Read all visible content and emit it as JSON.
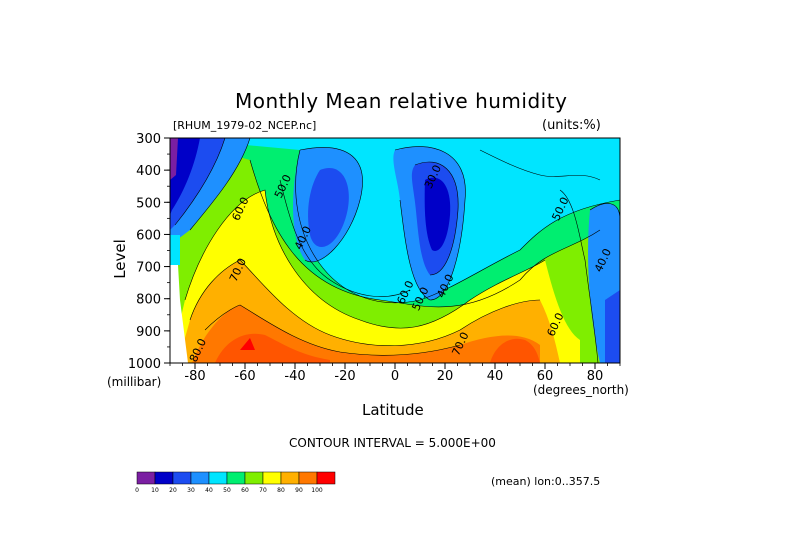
{
  "chart_data": {
    "type": "heatmap",
    "subtype": "filled-contour",
    "title": "Monthly Mean relative humidity",
    "dataset_label": "[RHUM_1979-02_NCEP.nc]",
    "units_label": "(units:%)",
    "xlabel": "Latitude",
    "x_unit": "(degrees_north)",
    "ylabel": "Level",
    "y_unit": "(millibar)",
    "xlim": [
      -90,
      90
    ],
    "ylim": [
      300,
      1000
    ],
    "y_axis_inverted": true,
    "x_ticks": [
      "-80",
      "-60",
      "-40",
      "-20",
      "0",
      "20",
      "40",
      "60",
      "80"
    ],
    "y_ticks": [
      "300",
      "400",
      "500",
      "600",
      "700",
      "800",
      "900",
      "1000"
    ],
    "contour_interval_text": "CONTOUR INTERVAL = 5.000E+00",
    "mean_text": "(mean) lon:0..357.5",
    "contour_labels": [
      {
        "text": "30.0",
        "x": 15,
        "y": 420
      },
      {
        "text": "40.0",
        "x": -37,
        "y": 610
      },
      {
        "text": "40.0",
        "x": 20,
        "y": 760
      },
      {
        "text": "40.0",
        "x": 83,
        "y": 680
      },
      {
        "text": "50.0",
        "x": -45,
        "y": 450
      },
      {
        "text": "50.0",
        "x": 10,
        "y": 800
      },
      {
        "text": "50.0",
        "x": 66,
        "y": 520
      },
      {
        "text": "60.0",
        "x": -62,
        "y": 520
      },
      {
        "text": "60.0",
        "x": 4,
        "y": 780
      },
      {
        "text": "60.0",
        "x": 64,
        "y": 880
      },
      {
        "text": "70.0",
        "x": -63,
        "y": 710
      },
      {
        "text": "70.0",
        "x": 26,
        "y": 940
      },
      {
        "text": "80.0",
        "x": -79,
        "y": 960
      }
    ],
    "colorbar": {
      "ticks": [
        "0",
        "10",
        "20",
        "30",
        "40",
        "50",
        "60",
        "70",
        "80",
        "90",
        "100"
      ],
      "colors": [
        "#7b1fa2",
        "#0000c8",
        "#1c4cf0",
        "#1e90ff",
        "#00e5ff",
        "#00ee70",
        "#7fee00",
        "#ffff00",
        "#ffb000",
        "#ff7800",
        "#ff0000"
      ]
    },
    "grid": false,
    "legend": "colorbar-bottom-left"
  }
}
